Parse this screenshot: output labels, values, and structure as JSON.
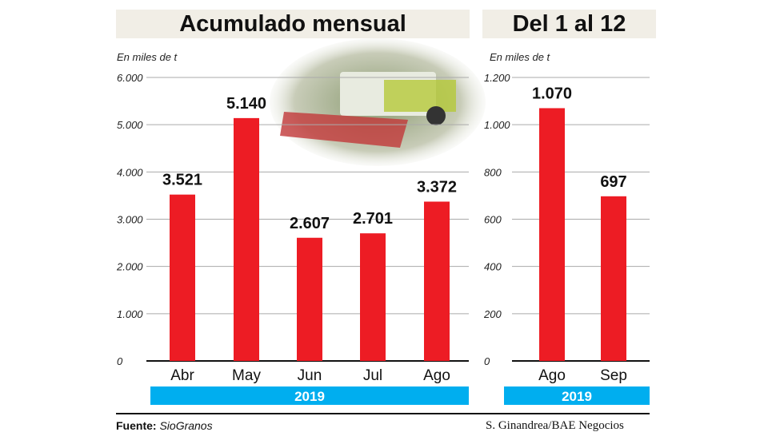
{
  "chart_data": [
    {
      "type": "bar",
      "title": "Acumulado mensual",
      "ylabel": "En miles de t",
      "categories": [
        "Abr",
        "May",
        "Jun",
        "Jul",
        "Ago"
      ],
      "values": [
        3521,
        5140,
        2607,
        2701,
        3372
      ],
      "labels": [
        "3.521",
        "5.140",
        "2.607",
        "2.701",
        "3.372"
      ],
      "ylim": [
        0,
        6000
      ],
      "yticks": [
        0,
        1000,
        2000,
        3000,
        4000,
        5000,
        6000
      ],
      "ytick_labels": [
        "0",
        "1.000",
        "2.000",
        "3.000",
        "4.000",
        "5.000",
        "6.000"
      ],
      "group_label": "2019",
      "grid": true
    },
    {
      "type": "bar",
      "title": "Del 1 al 12",
      "ylabel": "En miles de t",
      "categories": [
        "Ago",
        "Sep"
      ],
      "values": [
        1070,
        697
      ],
      "labels": [
        "1.070",
        "697"
      ],
      "ylim": [
        0,
        1200
      ],
      "yticks": [
        0,
        200,
        400,
        600,
        800,
        1000,
        1200
      ],
      "ytick_labels": [
        "0",
        "200",
        "400",
        "600",
        "800",
        "1.000",
        "1.200"
      ],
      "group_label": "2019",
      "grid": true
    }
  ],
  "footer": {
    "source_label": "Fuente:",
    "source": "SioGranos",
    "credit": "S. Ginandrea/BAE Negocios"
  },
  "colors": {
    "bar": "#ed1c24",
    "year_band": "#00aeef",
    "title_bg": "#f1eee6"
  }
}
